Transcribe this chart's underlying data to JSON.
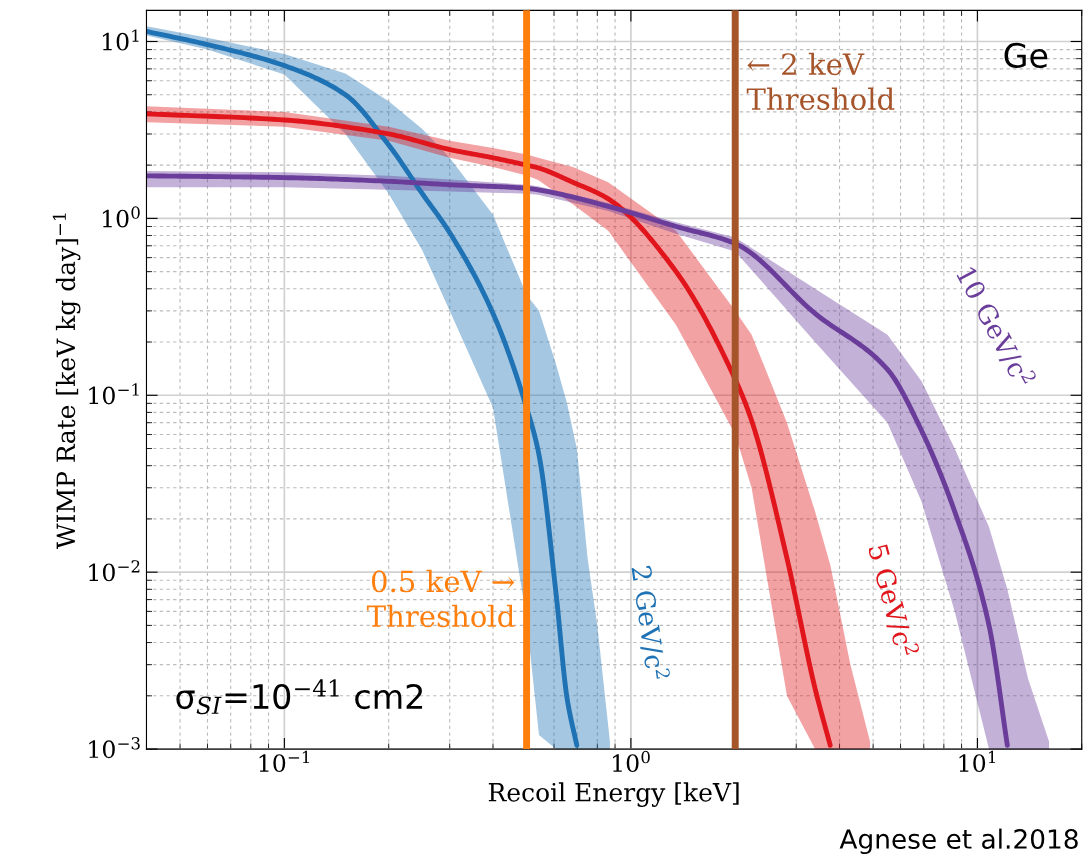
{
  "chart_data": {
    "type": "line",
    "xlabel": "Recoil Energy [keV]",
    "ylabel": "WIMP Rate [keV kg day]$^{−1}$",
    "log": "xy",
    "grid": true,
    "xlim": [
      0.04,
      20
    ],
    "ylim": [
      0.001,
      15
    ],
    "xticks": [
      {
        "value": 0.1,
        "label": "10$^{−1}$"
      },
      {
        "value": 1,
        "label": "10$^{0}$"
      },
      {
        "value": 10,
        "label": "10$^{1}$"
      }
    ],
    "yticks": [
      {
        "value": 0.001,
        "label": "10$^{−3}$"
      },
      {
        "value": 0.01,
        "label": "10$^{−2}$"
      },
      {
        "value": 0.1,
        "label": "10$^{−1}$"
      },
      {
        "value": 1,
        "label": "10$^{0}$"
      },
      {
        "value": 10,
        "label": "10$^{1}$"
      }
    ],
    "series": [
      {
        "name": "2 GeV/c$^{2}$",
        "color": "#1f72b4",
        "x": [
          0.04,
          0.06,
          0.1,
          0.15,
          0.2,
          0.25,
          0.3,
          0.4,
          0.5,
          0.543,
          0.608,
          0.654,
          0.698,
          0.75,
          0.8,
          0.87
        ],
        "values": [
          11.4,
          9.6,
          7.3,
          5.0,
          2.6,
          1.38,
          0.83,
          0.29,
          0.085,
          0.046,
          0.0076,
          0.00195,
          0.00105,
          null,
          null,
          null
        ],
        "lower": [
          10.8,
          9.0,
          6.5,
          3.0,
          1.38,
          0.66,
          0.3,
          0.085,
          0.0054,
          0.0012,
          0.001,
          0.001,
          0.001,
          0.001,
          0.001,
          0.001
        ],
        "upper": [
          12.2,
          10.5,
          8.5,
          6.6,
          4.6,
          3.2,
          2.2,
          1.05,
          0.37,
          0.3,
          0.15,
          0.09,
          0.05,
          0.012,
          0.005,
          0.0011
        ]
      },
      {
        "name": "5 GeV/c$^{2}$",
        "color": "#e0161c",
        "x": [
          0.04,
          0.1,
          0.2,
          0.3,
          0.4,
          0.5,
          0.54,
          0.68,
          0.86,
          1.35,
          2,
          2.23,
          2.82,
          3.4,
          3.76,
          4.3,
          4.9
        ],
        "values": [
          3.9,
          3.6,
          3.0,
          2.45,
          2.2,
          2.0,
          1.93,
          1.6,
          1.29,
          0.5,
          0.123,
          0.072,
          0.012,
          0.0022,
          0.00105,
          null,
          null
        ],
        "lower": [
          3.5,
          3.3,
          2.75,
          2.2,
          1.95,
          1.75,
          1.65,
          1.2,
          0.85,
          0.25,
          0.06,
          0.03,
          0.002,
          0.001,
          0.001,
          0.001,
          0.001
        ],
        "upper": [
          4.3,
          4.0,
          3.3,
          2.75,
          2.5,
          2.3,
          2.2,
          1.95,
          1.6,
          0.85,
          0.3,
          0.22,
          0.07,
          0.022,
          0.011,
          0.003,
          0.0011
        ]
      },
      {
        "name": "10 GeV/c$^{2}$",
        "color": "#6a3d9a",
        "x": [
          0.04,
          0.1,
          0.2,
          0.3,
          0.5,
          0.54,
          0.86,
          1.35,
          2,
          3.4,
          5.5,
          6.9,
          8.6,
          10.8,
          12.2,
          14,
          16.1
        ],
        "values": [
          1.74,
          1.7,
          1.62,
          1.55,
          1.48,
          1.45,
          1.17,
          0.9,
          0.72,
          0.29,
          0.14,
          0.063,
          0.022,
          0.005,
          0.00105,
          null,
          null
        ],
        "lower": [
          1.5,
          1.5,
          1.45,
          1.42,
          1.38,
          1.36,
          1.1,
          0.82,
          0.65,
          0.2,
          0.07,
          0.025,
          0.006,
          0.001,
          0.001,
          0.001,
          0.001
        ],
        "upper": [
          1.85,
          1.82,
          1.74,
          1.66,
          1.55,
          1.52,
          1.22,
          0.95,
          0.78,
          0.4,
          0.22,
          0.12,
          0.05,
          0.018,
          0.008,
          0.0025,
          0.0011
        ]
      }
    ],
    "ref_lines": [
      {
        "axis": "x",
        "value": 0.5,
        "label": "0.5 keV →\nThreshold",
        "color": "#ff7f0e"
      },
      {
        "axis": "x",
        "value": 2,
        "label": "← 2 keV\nThreshold",
        "color": "#a6542a"
      }
    ],
    "annotations": [
      "Ge",
      "σ$_{SI}$=10$^{−41}$ cm2",
      "Agnese et al.2018"
    ]
  }
}
